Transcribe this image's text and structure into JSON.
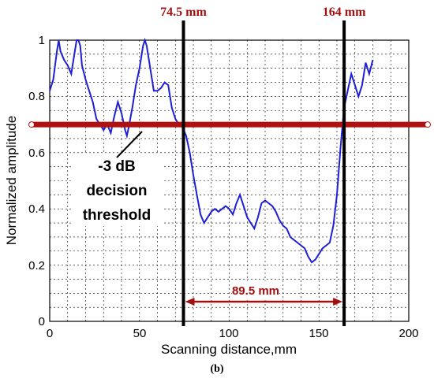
{
  "chart_data": {
    "type": "line",
    "xlabel": "Scanning distance,mm",
    "ylabel": "Normalized amplitude",
    "xlim": [
      0,
      200
    ],
    "ylim": [
      0,
      1
    ],
    "x_ticks": [
      "0",
      "50",
      "100",
      "150",
      "200"
    ],
    "y_ticks": [
      "0",
      "0.2",
      "0.4",
      "0.6",
      "0.8",
      "1"
    ],
    "grid": true,
    "colors": {
      "line": "#1f1fd6",
      "threshold": "#b01010",
      "marker": "#000000",
      "label": "#a01010"
    },
    "series": [
      {
        "x": [
          0,
          2,
          4,
          5,
          6,
          8,
          10,
          12,
          14,
          15,
          16,
          17,
          18,
          20,
          22,
          24,
          26,
          28,
          30,
          32,
          34,
          35,
          36,
          38,
          40,
          42,
          43,
          44,
          46,
          48,
          50,
          52,
          53,
          54,
          56,
          58,
          60,
          62,
          64,
          66,
          68,
          70,
          72,
          74,
          76,
          78,
          80,
          82,
          84,
          86,
          88,
          90,
          92,
          94,
          96,
          98,
          100,
          102,
          104,
          106,
          108,
          110,
          112,
          114,
          116,
          118,
          120,
          122,
          124,
          126,
          128,
          130,
          132,
          134,
          136,
          138,
          140,
          142,
          144,
          146,
          148,
          150,
          152,
          154,
          156,
          158,
          160,
          162,
          164,
          166,
          168,
          170,
          172,
          174,
          176,
          178,
          180
        ],
        "y": [
          0.82,
          0.86,
          0.96,
          1.0,
          0.96,
          0.93,
          0.91,
          0.88,
          0.96,
          1.0,
          1.0,
          0.98,
          0.91,
          0.86,
          0.82,
          0.78,
          0.72,
          0.7,
          0.68,
          0.7,
          0.67,
          0.7,
          0.73,
          0.78,
          0.74,
          0.68,
          0.66,
          0.69,
          0.76,
          0.84,
          0.9,
          0.98,
          1.0,
          0.98,
          0.9,
          0.82,
          0.82,
          0.83,
          0.85,
          0.84,
          0.76,
          0.72,
          0.7,
          0.69,
          0.66,
          0.6,
          0.52,
          0.45,
          0.38,
          0.35,
          0.37,
          0.39,
          0.4,
          0.39,
          0.4,
          0.41,
          0.4,
          0.38,
          0.42,
          0.45,
          0.41,
          0.37,
          0.35,
          0.33,
          0.37,
          0.42,
          0.43,
          0.42,
          0.41,
          0.39,
          0.36,
          0.34,
          0.33,
          0.3,
          0.29,
          0.28,
          0.27,
          0.26,
          0.23,
          0.21,
          0.22,
          0.24,
          0.26,
          0.27,
          0.28,
          0.34,
          0.45,
          0.62,
          0.76,
          0.82,
          0.88,
          0.84,
          0.8,
          0.84,
          0.92,
          0.88,
          0.93
        ]
      }
    ],
    "threshold": {
      "y": 0.7
    },
    "markers": [
      {
        "x": 74.5,
        "label": "74.5 mm"
      },
      {
        "x": 164,
        "label": "164 mm"
      }
    ],
    "distance": {
      "from": 74.5,
      "to": 164,
      "y": 0.07,
      "label": "89.5 mm"
    },
    "annotation": {
      "lines": [
        "-3 dB",
        "decision",
        "threshold"
      ]
    }
  },
  "caption": "(b)"
}
